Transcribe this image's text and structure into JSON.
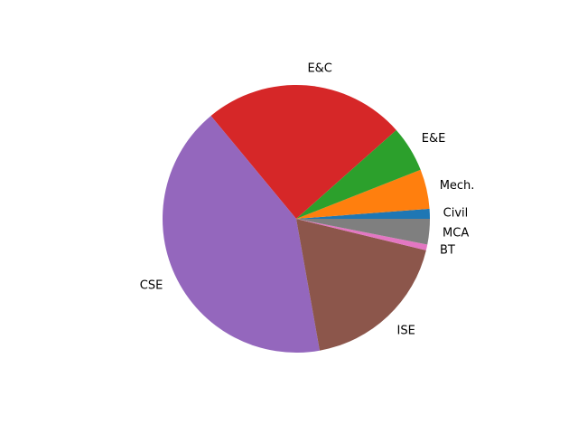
{
  "chart_data": {
    "type": "pie",
    "start_angle": 0,
    "direction": "counterclockwise",
    "categories": [
      "Civil",
      "Mech.",
      "E&E",
      "E&C",
      "CSE",
      "ISE",
      "BT",
      "MCA"
    ],
    "values": [
      1.2,
      4.8,
      5.6,
      24.6,
      42.0,
      18.5,
      0.7,
      3.1
    ],
    "colors": [
      "#1f77b4",
      "#ff7f0e",
      "#2ca02c",
      "#d62728",
      "#9467bd",
      "#8c564b",
      "#e377c2",
      "#7f7f7f"
    ],
    "title": "",
    "legend": "none"
  }
}
